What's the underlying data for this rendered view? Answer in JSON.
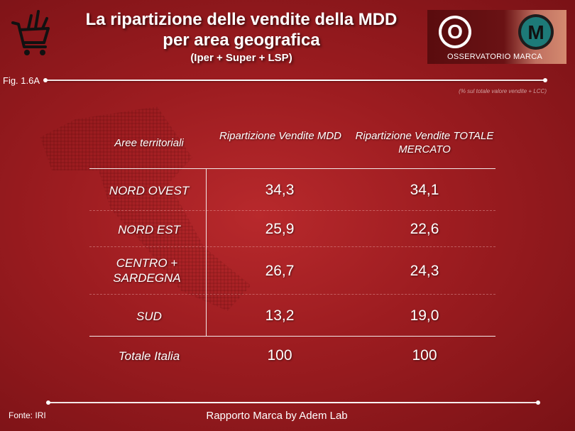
{
  "header": {
    "title_line1": "La ripartizione delle vendite della MDD",
    "title_line2": "per area geografica",
    "title_line3": "(Iper + Super + LSP)"
  },
  "logo": {
    "text": "OSSERVATORIO MARCA",
    "letter_o": "O",
    "letter_m": "M"
  },
  "figure_label": "Fig. 1.6A",
  "note": "(% sul totale valore vendite + LCC)",
  "table": {
    "headers": [
      "Aree territoriali",
      "Ripartizione Vendite MDD",
      "Ripartizione Vendite TOTALE MERCATO"
    ],
    "rows": [
      {
        "area": "NORD OVEST",
        "mdd": "34,3",
        "totale": "34,1"
      },
      {
        "area": "NORD EST",
        "mdd": "25,9",
        "totale": "22,6"
      },
      {
        "area": "CENTRO + SARDEGNA",
        "mdd": "26,7",
        "totale": "24,3"
      },
      {
        "area": "SUD",
        "mdd": "13,2",
        "totale": "19,0"
      }
    ],
    "total": {
      "area": "Totale Italia",
      "mdd": "100",
      "totale": "100"
    }
  },
  "source": "Fonte: IRI",
  "footer": "Rapporto Marca by Adem Lab",
  "colors": {
    "background": "#a82024",
    "text": "#ffffff",
    "logo_teal": "#1d7a78"
  }
}
